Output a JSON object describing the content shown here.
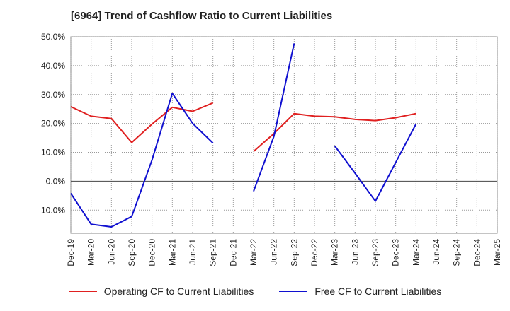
{
  "chart_data": {
    "type": "line",
    "title": "[6964]  Trend of Cashflow Ratio to Current Liabilities",
    "xlabel": "",
    "ylabel": "",
    "x": [
      "Dec-19",
      "Mar-20",
      "Jun-20",
      "Sep-20",
      "Dec-20",
      "Mar-21",
      "Jun-21",
      "Sep-21",
      "Dec-21",
      "Mar-22",
      "Jun-22",
      "Sep-22",
      "Dec-22",
      "Mar-23",
      "Jun-23",
      "Sep-23",
      "Dec-23",
      "Mar-24",
      "Jun-24",
      "Sep-24",
      "Dec-24",
      "Mar-25"
    ],
    "ylim": [
      -18,
      50
    ],
    "yticks": [
      50,
      40,
      30,
      20,
      10,
      0,
      -10
    ],
    "ytick_labels": [
      "50.0%",
      "40.0%",
      "30.0%",
      "20.0%",
      "10.0%",
      "0.0%",
      "-10.0%"
    ],
    "grid": true,
    "legend_position": "bottom",
    "series": [
      {
        "name": "Operating CF to Current Liabilities",
        "color": "#e02020",
        "values": [
          25.8,
          22.5,
          21.7,
          13.4,
          19.8,
          25.6,
          24.2,
          27.1,
          null,
          10.3,
          16.5,
          23.4,
          22.5,
          22.3,
          21.4,
          21.0,
          22.0,
          23.4,
          null,
          null,
          null,
          null
        ]
      },
      {
        "name": "Free CF to Current Liabilities",
        "color": "#1010d0",
        "values": [
          -4.2,
          -14.9,
          -15.8,
          -12.2,
          7.4,
          30.4,
          20.0,
          13.2,
          null,
          -3.5,
          15.5,
          47.7,
          null,
          12.2,
          2.8,
          -6.9,
          6.5,
          19.8,
          null,
          null,
          null,
          null
        ]
      }
    ]
  }
}
